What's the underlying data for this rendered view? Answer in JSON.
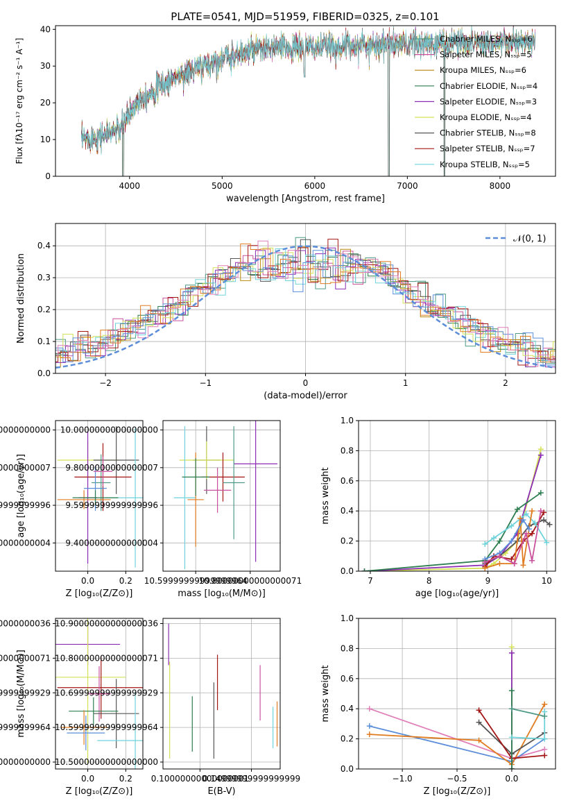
{
  "figure_title": "PLATE=0541, MJD=51959, FIBERID=0325, z=0.101",
  "colors": {
    "Chabrier MILES": "#4f9a86",
    "Salpeter MILES": "#c9509c",
    "Kroupa MILES": "#b8860b",
    "Chabrier ELODIE": "#2e7d4f",
    "Salpeter ELODIE": "#8b2cb5",
    "Kroupa ELODIE": "#d4e157",
    "Chabrier STELIB": "#555555",
    "Salpeter STELIB": "#a31515",
    "Kroupa STELIB": "#6fd3dc",
    "gaussian": "#5b8dd9",
    "extra1": "#5b8dd9",
    "extra2": "#e07b20",
    "extra3": "#e07fb8"
  },
  "chart_data": [
    {
      "id": "spectrum",
      "type": "line",
      "title": "PLATE=0541, MJD=51959, FIBERID=0325, z=0.101",
      "xlabel": "wavelength [Angstrom, rest frame]",
      "ylabel": "Flux [fλ10⁻¹⁷ erg cm⁻² s⁻¹ A⁻¹]",
      "xlim": [
        3200,
        8600
      ],
      "ylim": [
        0,
        41
      ],
      "xticks": [
        4000,
        5000,
        6000,
        7000,
        8000
      ],
      "yticks": [
        0,
        10,
        20,
        30,
        40
      ],
      "grid": false,
      "legend_position": "top-right",
      "legend": [
        "Chabrier MILES, Nₛₛₚ=6",
        "Salpeter MILES, Nₛₛₚ=5",
        "Kroupa MILES, Nₛₛₚ=6",
        "Chabrier ELODIE, Nₛₛₚ=4",
        "Salpeter ELODIE, Nₛₛₚ=3",
        "Kroupa ELODIE, Nₛₛₚ=4",
        "Chabrier STELIB, Nₛₛₚ=8",
        "Salpeter STELIB, Nₛₛₚ=7",
        "Kroupa STELIB, Nₛₛₚ=5"
      ],
      "series_keys": [
        "Chabrier MILES",
        "Salpeter MILES",
        "Kroupa MILES",
        "Chabrier ELODIE",
        "Salpeter ELODIE",
        "Kroupa ELODIE",
        "Chabrier STELIB",
        "Salpeter STELIB",
        "Kroupa STELIB"
      ],
      "continuum": {
        "x": [
          3500,
          3700,
          3900,
          4000,
          4100,
          4300,
          4500,
          4700,
          5000,
          5300,
          5600,
          6000,
          6400,
          6800,
          7200,
          7600,
          8000,
          8400
        ],
        "y": [
          10,
          11,
          13,
          17,
          21,
          24,
          27,
          29,
          32,
          34,
          35,
          35,
          35.5,
          36,
          36,
          36.5,
          36.5,
          36
        ]
      },
      "dips": [
        {
          "x": 3930,
          "y": 0
        },
        {
          "x": 5890,
          "y": 27
        },
        {
          "x": 6800,
          "y": 0
        },
        {
          "x": 7400,
          "y": 0
        }
      ]
    },
    {
      "id": "residuals",
      "type": "bar",
      "xlabel": "(data-model)/error",
      "ylabel": "Normed distribution",
      "xlim": [
        -2.5,
        2.5
      ],
      "ylim": [
        0,
        0.47
      ],
      "xticks": [
        -2,
        -1,
        0,
        1,
        2
      ],
      "yticks": [
        0.0,
        0.1,
        0.2,
        0.3,
        0.4
      ],
      "grid": true,
      "legend": "𝒩(0, 1)",
      "legend_position": "top-right",
      "bin_width": 0.1
    },
    {
      "id": "age_vs_Z",
      "type": "scatter",
      "xlabel": "Z [log₁₀(Z/Z⊙)]",
      "ylabel": "age  [log₁₀(age/yr)]",
      "xlim": [
        -0.17,
        0.29
      ],
      "ylim": [
        9.25,
        10.05
      ],
      "xticks": [
        0.0,
        0.2
      ],
      "yticks": [
        9.4,
        9.6,
        9.8,
        10.0
      ],
      "grid": true,
      "points": [
        {
          "key": "Chabrier MILES",
          "x": 0.07,
          "y": 9.72,
          "xerr": 0.05,
          "yerr": 0.15
        },
        {
          "key": "Kroupa ELODIE",
          "x": 0.0,
          "y": 9.84,
          "xerr": 0.16,
          "yerr": 0.1
        },
        {
          "key": "Salpeter ELODIE",
          "x": 0.0,
          "y": 9.64,
          "xerr": 0.05,
          "yerr": 0.35
        },
        {
          "key": "Chabrier STELIB",
          "x": 0.15,
          "y": 9.84,
          "xerr": 0.12,
          "yerr": 0.18
        },
        {
          "key": "Salpeter STELIB",
          "x": 0.08,
          "y": 9.75,
          "xerr": 0.15,
          "yerr": 0.18
        },
        {
          "key": "Kroupa STELIB",
          "x": 0.25,
          "y": 9.64,
          "xerr": 0.16,
          "yerr": 0.37
        },
        {
          "key": "extra2",
          "x": -0.02,
          "y": 9.63,
          "xerr": 0.14,
          "yerr": 0.05
        },
        {
          "key": "extra1",
          "x": 0.04,
          "y": 9.69,
          "xerr": 0.06,
          "yerr": 0.12
        },
        {
          "key": "Salpeter MILES",
          "x": 0.08,
          "y": 9.78,
          "xerr": 0.05,
          "yerr": 0.08
        },
        {
          "key": "Chabrier ELODIE",
          "x": 0.04,
          "y": 9.64,
          "xerr": 0.12,
          "yerr": 0.04
        }
      ]
    },
    {
      "id": "age_vs_mass",
      "type": "scatter",
      "xlabel": "mass [log₁₀(M/M⊙)]",
      "ylabel": "",
      "xlim": [
        10.48,
        10.91
      ],
      "ylim": [
        9.25,
        10.05
      ],
      "xticks": [
        10.6,
        10.8
      ],
      "yticks": [
        9.4,
        9.6,
        9.8,
        10.0
      ],
      "grid": true,
      "points": [
        {
          "key": "Chabrier STELIB",
          "x": 10.64,
          "y": 9.84,
          "xerr": 0.05,
          "yerr": 0.18
        },
        {
          "key": "Kroupa ELODIE",
          "x": 10.64,
          "y": 9.84,
          "xerr": 0.1,
          "yerr": 0.1
        },
        {
          "key": "Salpeter ELODIE",
          "x": 10.82,
          "y": 9.82,
          "xerr": 0.08,
          "yerr": 0.52
        },
        {
          "key": "Salpeter STELIB",
          "x": 10.7,
          "y": 9.75,
          "xerr": 0.08,
          "yerr": 0.13
        },
        {
          "key": "Kroupa STELIB",
          "x": 10.56,
          "y": 9.64,
          "xerr": 0.04,
          "yerr": 0.38
        },
        {
          "key": "extra2",
          "x": 10.6,
          "y": 9.63,
          "xerr": 0.03,
          "yerr": 0.25
        },
        {
          "key": "Salpeter MILES",
          "x": 10.68,
          "y": 9.68,
          "xerr": 0.05,
          "yerr": 0.12
        },
        {
          "key": "Chabrier ELODIE",
          "x": 10.6,
          "y": 9.75,
          "xerr": 0.05,
          "yerr": 0.1
        },
        {
          "key": "Chabrier MILES",
          "x": 10.74,
          "y": 9.72,
          "xerr": 0.04,
          "yerr": 0.3
        }
      ]
    },
    {
      "id": "weight_vs_age",
      "type": "line",
      "xlabel": "age  [log₁₀(age/yr)]",
      "ylabel": "mass weight",
      "xlim": [
        6.8,
        10.15
      ],
      "ylim": [
        0,
        1
      ],
      "xticks": [
        7,
        8,
        9,
        10
      ],
      "yticks": [
        0.0,
        0.2,
        0.4,
        0.6,
        0.8,
        1.0
      ],
      "grid": true,
      "series": [
        {
          "key": "Kroupa ELODIE",
          "x": [
            6.9,
            8.95,
            9.1,
            9.3,
            9.5,
            9.9
          ],
          "y": [
            0.0,
            0.02,
            0.05,
            0.12,
            0.2,
            0.81
          ]
        },
        {
          "key": "Salpeter ELODIE",
          "x": [
            6.9,
            8.95,
            9.2,
            9.5,
            9.9
          ],
          "y": [
            0.0,
            0.04,
            0.1,
            0.25,
            0.77
          ]
        },
        {
          "key": "Chabrier ELODIE",
          "x": [
            6.9,
            8.95,
            9.2,
            9.5,
            9.9
          ],
          "y": [
            0.0,
            0.07,
            0.2,
            0.41,
            0.52
          ]
        },
        {
          "key": "Chabrier STELIB",
          "x": [
            8.95,
            9.2,
            9.5,
            9.7,
            9.95,
            10.05
          ],
          "y": [
            0.05,
            0.1,
            0.2,
            0.3,
            0.34,
            0.31
          ]
        },
        {
          "key": "Salpeter STELIB",
          "x": [
            8.95,
            9.1,
            9.4,
            9.6,
            9.75,
            9.95
          ],
          "y": [
            0.03,
            0.1,
            0.08,
            0.2,
            0.25,
            0.39
          ]
        },
        {
          "key": "Kroupa STELIB",
          "x": [
            8.95,
            9.1,
            9.4,
            9.65,
            9.8,
            10.0
          ],
          "y": [
            0.18,
            0.22,
            0.3,
            0.38,
            0.32,
            0.19
          ]
        },
        {
          "key": "extra2",
          "x": [
            8.95,
            9.2,
            9.45,
            9.55,
            9.6,
            9.75
          ],
          "y": [
            0.02,
            0.05,
            0.05,
            0.35,
            0.04,
            0.4
          ]
        },
        {
          "key": "extra1",
          "x": [
            8.95,
            9.2,
            9.4,
            9.6,
            9.7
          ],
          "y": [
            0.08,
            0.12,
            0.2,
            0.34,
            0.28
          ]
        },
        {
          "key": "Salpeter MILES",
          "x": [
            8.95,
            9.2,
            9.45,
            9.65,
            9.75,
            9.9
          ],
          "y": [
            0.06,
            0.1,
            0.05,
            0.25,
            0.07,
            0.4
          ]
        }
      ]
    },
    {
      "id": "mass_vs_Z",
      "type": "scatter",
      "xlabel": "Z [log₁₀(Z/Z⊙)]",
      "ylabel": "mass [log₁₀(M/M⊙)]",
      "xlim": [
        -0.17,
        0.29
      ],
      "ylim": [
        10.48,
        10.915
      ],
      "xticks": [
        0.0,
        0.2
      ],
      "yticks": [
        10.5,
        10.6,
        10.7,
        10.8,
        10.9
      ],
      "grid": true,
      "points": [
        {
          "key": "Salpeter ELODIE",
          "x": 0.0,
          "y": 10.84,
          "xerr": 0.17,
          "yerr": 0.06
        },
        {
          "key": "Kroupa ELODIE",
          "x": 0.0,
          "y": 10.745,
          "xerr": 0.2,
          "yerr": 0.25
        },
        {
          "key": "Salpeter STELIB",
          "x": 0.07,
          "y": 10.715,
          "xerr": 0.23,
          "yerr": 0.09
        },
        {
          "key": "Salpeter MILES",
          "x": 0.06,
          "y": 10.697,
          "xerr": 0.06,
          "yerr": 0.08
        },
        {
          "key": "Chabrier STELIB",
          "x": 0.15,
          "y": 10.64,
          "xerr": 0.12,
          "yerr": 0.1
        },
        {
          "key": "Chabrier ELODIE",
          "x": 0.03,
          "y": 10.647,
          "xerr": 0.13,
          "yerr": 0.04
        },
        {
          "key": "extra2",
          "x": -0.02,
          "y": 10.6,
          "xerr": 0.12,
          "yerr": 0.05
        },
        {
          "key": "extra1",
          "x": -0.01,
          "y": 10.584,
          "xerr": 0.1,
          "yerr": 0.05
        },
        {
          "key": "Kroupa STELIB",
          "x": 0.25,
          "y": 10.562,
          "xerr": 0.2,
          "yerr": 0.14
        }
      ]
    },
    {
      "id": "mass_vs_ebv",
      "type": "scatter",
      "xlabel": "E(B-V)",
      "ylabel": "",
      "xlim": [
        0.064,
        0.178
      ],
      "ylim": [
        10.48,
        10.915
      ],
      "xticks": [
        0.1,
        0.15
      ],
      "yticks": [
        10.5,
        10.6,
        10.7,
        10.8,
        10.9
      ],
      "grid": true,
      "points": [
        {
          "key": "Salpeter ELODIE",
          "x": 0.0695,
          "y": 10.84,
          "xerr": 0,
          "yerr": 0.06
        },
        {
          "key": "Kroupa ELODIE",
          "x": 0.0705,
          "y": 10.65,
          "xerr": 0,
          "yerr": 0.14
        },
        {
          "key": "Chabrier ELODIE",
          "x": 0.0925,
          "y": 10.61,
          "xerr": 0,
          "yerr": 0.08
        },
        {
          "key": "Chabrier STELIB",
          "x": 0.1135,
          "y": 10.62,
          "xerr": 0,
          "yerr": 0.11
        },
        {
          "key": "Salpeter STELIB",
          "x": 0.117,
          "y": 10.73,
          "xerr": 0,
          "yerr": 0.08
        },
        {
          "key": "Salpeter MILES",
          "x": 0.1585,
          "y": 10.7,
          "xerr": 0,
          "yerr": 0.08
        },
        {
          "key": "Kroupa STELIB",
          "x": 0.171,
          "y": 10.6,
          "xerr": 0,
          "yerr": 0.06
        },
        {
          "key": "extra2",
          "x": 0.175,
          "y": 10.61,
          "xerr": 0,
          "yerr": 0.065
        }
      ]
    },
    {
      "id": "weight_vs_Z",
      "type": "line",
      "xlabel": "Z [log₁₀(Z/Z⊙)]",
      "ylabel": "mass weight",
      "xlim": [
        -1.4,
        0.4
      ],
      "ylim": [
        0,
        1
      ],
      "xticks": [
        -1.0,
        -0.5,
        0.0
      ],
      "yticks": [
        0.0,
        0.2,
        0.4,
        0.6,
        0.8,
        1.0
      ],
      "grid": true,
      "series": [
        {
          "key": "extra3",
          "x": [
            -1.3,
            0.0,
            0.3
          ],
          "y": [
            0.4,
            0.07,
            0.13
          ]
        },
        {
          "key": "extra1",
          "x": [
            -1.3,
            0.0,
            0.3
          ],
          "y": [
            0.285,
            0.05,
            0.2
          ]
        },
        {
          "key": "extra2",
          "x": [
            -1.3,
            -0.3,
            0.0,
            0.3
          ],
          "y": [
            0.23,
            0.19,
            0.03,
            0.43
          ]
        },
        {
          "key": "Chabrier STELIB",
          "x": [
            -0.3,
            0.0,
            0.3
          ],
          "y": [
            0.31,
            0.1,
            0.24
          ]
        },
        {
          "key": "Salpeter STELIB",
          "x": [
            -0.3,
            0.0,
            0.3
          ],
          "y": [
            0.39,
            0.07,
            0.09
          ]
        },
        {
          "key": "Kroupa ELODIE",
          "x": [
            0.0,
            0.0
          ],
          "y": [
            0.81,
            0.0
          ]
        },
        {
          "key": "Salpeter ELODIE",
          "x": [
            0.0,
            0.0
          ],
          "y": [
            0.77,
            0.0
          ]
        },
        {
          "key": "Chabrier ELODIE",
          "x": [
            0.0,
            0.0
          ],
          "y": [
            0.52,
            0.0
          ]
        },
        {
          "key": "Kroupa STELIB",
          "x": [
            0.0,
            0.3,
            0.3
          ],
          "y": [
            0.21,
            0.2,
            0.38
          ]
        },
        {
          "key": "Chabrier MILES",
          "x": [
            0.0,
            0.3
          ],
          "y": [
            0.4,
            0.35
          ]
        }
      ]
    }
  ]
}
